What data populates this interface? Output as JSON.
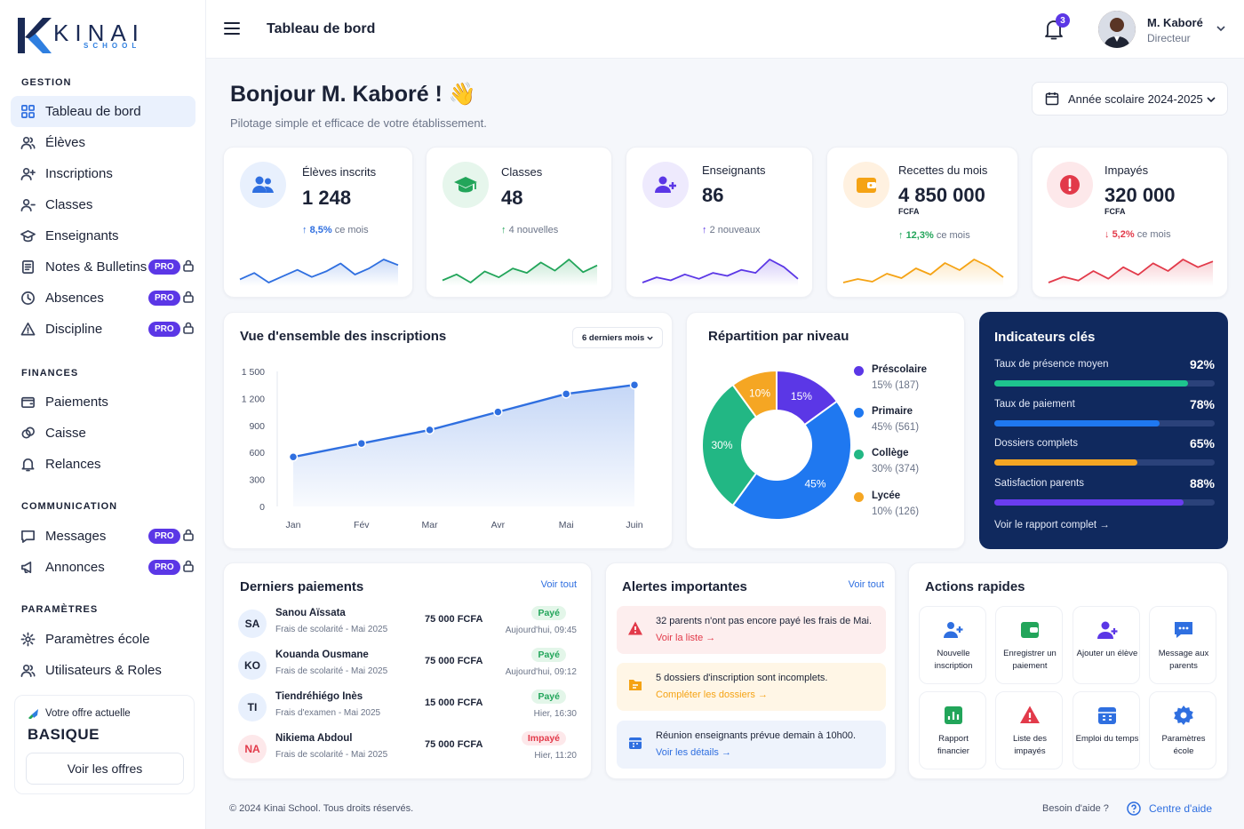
{
  "brand": {
    "name": "KINAI",
    "sub": "SCHOOL"
  },
  "sidebar": {
    "sections": [
      "GESTION",
      "FINANCES",
      "COMMUNICATION",
      "PARAMÈTRES"
    ],
    "items": [
      {
        "label": "Tableau de bord",
        "icon": "grid-icon",
        "active": true
      },
      {
        "label": "Élèves",
        "icon": "users-icon"
      },
      {
        "label": "Inscriptions",
        "icon": "user-plus-icon"
      },
      {
        "label": "Classes",
        "icon": "user-group-icon"
      },
      {
        "label": "Enseignants",
        "icon": "graduation-cap-icon"
      },
      {
        "label": "Notes & Bulletins",
        "icon": "document-icon",
        "badge": "PRO"
      },
      {
        "label": "Absences",
        "icon": "clock-icon",
        "badge": "PRO"
      },
      {
        "label": "Discipline",
        "icon": "warning-icon",
        "badge": "PRO"
      },
      {
        "label": "Paiements",
        "icon": "wallet-icon"
      },
      {
        "label": "Caisse",
        "icon": "coins-icon"
      },
      {
        "label": "Relances",
        "icon": "bell-icon"
      },
      {
        "label": "Messages",
        "icon": "chat-icon",
        "badge": "PRO"
      },
      {
        "label": "Annonces",
        "icon": "megaphone-icon",
        "badge": "PRO"
      },
      {
        "label": "Paramètres école",
        "icon": "settings-icon"
      },
      {
        "label": "Utilisateurs & Roles",
        "icon": "users-icon"
      }
    ],
    "offer": {
      "label": "Votre offre actuelle",
      "plan": "BASIQUE",
      "button": "Voir les offres"
    }
  },
  "topbar": {
    "title": "Tableau de bord",
    "notifications": "3",
    "user_name": "M. Kaboré",
    "user_role": "Directeur"
  },
  "header": {
    "greeting": "Bonjour M. Kaboré ! 👋",
    "subtitle": "Pilotage simple et efficace de votre établissement.",
    "year": "Année scolaire 2024-2025"
  },
  "kpis": [
    {
      "label": "Élèves inscrits",
      "value": "1 248",
      "unit": "",
      "trend_value": "8,5%",
      "trend_text": "ce mois",
      "direction": "up",
      "color": "#2f6fe0",
      "spark": [
        30,
        38,
        26,
        34,
        42,
        33,
        40,
        50,
        36,
        44,
        55,
        48
      ]
    },
    {
      "label": "Classes",
      "value": "48",
      "unit": "",
      "trend_value": "4 nouvelles",
      "trend_text": "",
      "direction": "up",
      "color": "#22a55a",
      "spark": [
        28,
        36,
        25,
        40,
        32,
        44,
        38,
        52,
        41,
        56,
        39,
        48
      ]
    },
    {
      "label": "Enseignants",
      "value": "86",
      "unit": "",
      "trend_value": "2 nouveaux",
      "trend_text": "",
      "direction": "up",
      "color": "#5b37e6",
      "spark": [
        25,
        32,
        28,
        36,
        30,
        38,
        34,
        42,
        38,
        56,
        46,
        30
      ]
    },
    {
      "label": "Recettes du mois",
      "value": "4 850 000",
      "unit": "FCFA",
      "trend_value": "12,3%",
      "trend_text": "ce mois",
      "direction": "up",
      "color": "#f5a314",
      "spark": [
        26,
        30,
        27,
        36,
        31,
        42,
        35,
        48,
        40,
        52,
        44,
        32
      ]
    },
    {
      "label": "Impayés",
      "value": "320 000",
      "unit": "FCFA",
      "trend_value": "5,2%",
      "trend_text": "ce mois",
      "direction": "down",
      "color": "#e23a4a",
      "spark": [
        28,
        34,
        30,
        40,
        32,
        44,
        36,
        48,
        40,
        52,
        44,
        50
      ]
    }
  ],
  "enrollments": {
    "title": "Vue d'ensemble des inscriptions",
    "period": "6 derniers mois",
    "chart_data": {
      "type": "area",
      "x": [
        "Jan",
        "Fév",
        "Mar",
        "Avr",
        "Mai",
        "Juin"
      ],
      "y": [
        550,
        700,
        850,
        1050,
        1250,
        1350
      ],
      "yticks": [
        "1 500",
        "1 200",
        "900",
        "600",
        "300",
        "0"
      ],
      "ylim": [
        0,
        1500
      ],
      "color": "#2f6fe0"
    }
  },
  "distribution": {
    "title": "Répartition par niveau",
    "chart_data": {
      "type": "pie",
      "labels": [
        "Préscolaire",
        "Primaire",
        "Collège",
        "Lycée"
      ],
      "values": [
        15,
        45,
        30,
        10
      ],
      "counts": [
        "15% (187)",
        "45% (561)",
        "30% (374)",
        "10% (126)"
      ],
      "slice_labels": [
        "15%",
        "45%",
        "30%",
        "10%"
      ],
      "colors": [
        "#5b37e6",
        "#1f78f0",
        "#22b784",
        "#f5a623"
      ]
    }
  },
  "indicators": {
    "title": "Indicateurs clés",
    "items": [
      {
        "label": "Taux de présence moyen",
        "value": "92%",
        "fill": 0.88,
        "color": "#1ec48e"
      },
      {
        "label": "Taux de paiement",
        "value": "78%",
        "fill": 0.75,
        "color": "#1f78f0"
      },
      {
        "label": "Dossiers complets",
        "value": "65%",
        "fill": 0.65,
        "color": "#f5a623"
      },
      {
        "label": "Satisfaction parents",
        "value": "88%",
        "fill": 0.86,
        "color": "#6a3df0"
      }
    ],
    "link": "Voir le rapport complet"
  },
  "payments": {
    "title": "Derniers paiements",
    "link": "Voir tout",
    "rows": [
      {
        "initials": "SA",
        "name": "Sanou Aïssata",
        "desc": "Frais de scolarité - Mai 2025",
        "amount": "75 000 FCFA",
        "status": "Payé",
        "time": "Aujourd'hui, 09:45"
      },
      {
        "initials": "KO",
        "name": "Kouanda Ousmane",
        "desc": "Frais de scolarité - Mai 2025",
        "amount": "75 000 FCFA",
        "status": "Payé",
        "time": "Aujourd'hui, 09:12"
      },
      {
        "initials": "TI",
        "name": "Tiendréhiégo Inès",
        "desc": "Frais d'examen - Mai 2025",
        "amount": "15 000 FCFA",
        "status": "Payé",
        "time": "Hier, 16:30"
      },
      {
        "initials": "NA",
        "name": "Nikiema Abdoul",
        "desc": "Frais de scolarité - Mai 2025",
        "amount": "75 000 FCFA",
        "status": "Impayé",
        "time": "Hier, 11:20"
      }
    ]
  },
  "alerts": {
    "title": "Alertes importantes",
    "link": "Voir tout",
    "items": [
      {
        "text": "32 parents n'ont pas encore payé les frais de Mai.",
        "action": "Voir la liste"
      },
      {
        "text": "5 dossiers d'inscription sont incomplets.",
        "action": "Compléter les dossiers"
      },
      {
        "text": "Réunion enseignants prévue demain à 10h00.",
        "action": "Voir les détails"
      }
    ]
  },
  "actions": {
    "title": "Actions rapides",
    "items": [
      {
        "label": "Nouvelle inscription",
        "icon": "user-plus-icon"
      },
      {
        "label": "Enregistrer un paiement",
        "icon": "wallet-icon"
      },
      {
        "label": "Ajouter un élève",
        "icon": "user-add-icon"
      },
      {
        "label": "Message aux parents",
        "icon": "chat-icon"
      },
      {
        "label": "Rapport financier",
        "icon": "report-icon"
      },
      {
        "label": "Liste des impayés",
        "icon": "warning-icon"
      },
      {
        "label": "Emploi du temps",
        "icon": "calendar-icon"
      },
      {
        "label": "Paramètres école",
        "icon": "settings-icon"
      }
    ]
  },
  "footer": {
    "copyright": "© 2024 Kinai School. Tous droits réservés.",
    "help_q": "Besoin d'aide ?",
    "help_link": "Centre d'aide"
  }
}
